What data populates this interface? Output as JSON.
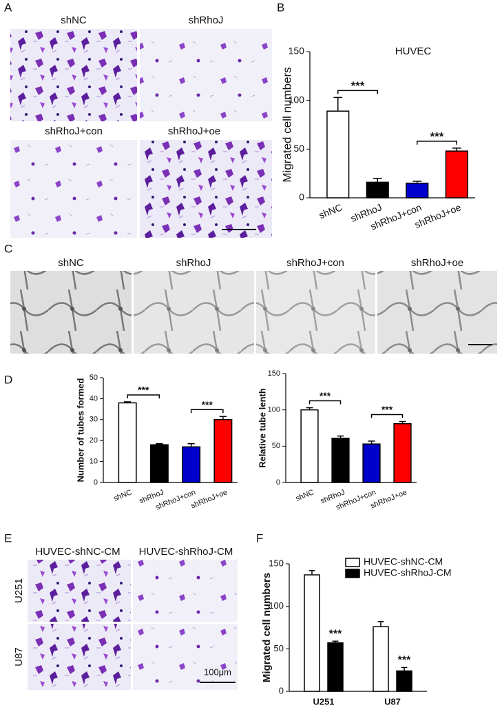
{
  "panel_labels": [
    "A",
    "B",
    "C",
    "D",
    "E",
    "F"
  ],
  "panel_A_images": [
    "shNC",
    "shRhoJ",
    "shRhoJ+con",
    "shRhoJ+oe"
  ],
  "panel_C_images": [
    "shNC",
    "shRhoJ",
    "shRhoJ+con",
    "shRhoJ+oe"
  ],
  "panel_E_columns": [
    "HUVEC-shNC-CM",
    "HUVEC-shRhoJ-CM"
  ],
  "panel_E_rows": [
    "U251",
    "U87"
  ],
  "panel_E_scale": "100μm",
  "chart_data": [
    {
      "type": "bar",
      "annotation": "HUVEC",
      "ylabel": "Migrated cell numbers",
      "categories": [
        "shNC",
        "shRhoJ",
        "shRhoJ+con",
        "shRhoJ+oe"
      ],
      "values": [
        89,
        16,
        15,
        48
      ],
      "errors": [
        14,
        4,
        2,
        3
      ],
      "colors": [
        "#ffffff",
        "#000000",
        "#0000cc",
        "#ff0000"
      ],
      "ylim": [
        0,
        150
      ],
      "yticks": [
        0,
        50,
        100,
        150
      ],
      "significance": [
        {
          "between": [
            0,
            1
          ],
          "label": "***"
        },
        {
          "between": [
            2,
            3
          ],
          "label": "***"
        }
      ]
    },
    {
      "type": "bar",
      "ylabel": "Number of tubes formed",
      "categories": [
        "shNC",
        "shRhoJ",
        "shRhoJ+con",
        "shRhoJ+oe"
      ],
      "values": [
        38,
        18,
        17,
        30
      ],
      "errors": [
        0.5,
        0.5,
        1.5,
        1.5
      ],
      "colors": [
        "#ffffff",
        "#000000",
        "#0000cc",
        "#ff0000"
      ],
      "ylim": [
        0,
        50
      ],
      "yticks": [
        0,
        10,
        20,
        30,
        40,
        50
      ],
      "significance": [
        {
          "between": [
            0,
            1
          ],
          "label": "***"
        },
        {
          "between": [
            2,
            3
          ],
          "label": "***"
        }
      ]
    },
    {
      "type": "bar",
      "ylabel": "Relative tube lenth",
      "categories": [
        "shNC",
        "shRhoJ",
        "shRhoJ+con",
        "shRhoJ+oe"
      ],
      "values": [
        100,
        61,
        53,
        81
      ],
      "errors": [
        3,
        3,
        4,
        3
      ],
      "colors": [
        "#ffffff",
        "#000000",
        "#0000cc",
        "#ff0000"
      ],
      "ylim": [
        0,
        150
      ],
      "yticks": [
        0,
        50,
        100,
        150
      ],
      "significance": [
        {
          "between": [
            0,
            1
          ],
          "label": "***"
        },
        {
          "between": [
            2,
            3
          ],
          "label": "***"
        }
      ]
    },
    {
      "type": "grouped_bar",
      "ylabel": "Migrated cell numbers",
      "categories": [
        "U251",
        "U87"
      ],
      "series": [
        {
          "name": "HUVEC-shNC-CM",
          "color": "#ffffff",
          "values": [
            137,
            76
          ],
          "errors": [
            5,
            6
          ]
        },
        {
          "name": "HUVEC-shRhoJ-CM",
          "color": "#000000",
          "values": [
            57,
            24
          ],
          "errors": [
            2,
            4
          ],
          "annotations": [
            "***",
            "***"
          ]
        }
      ],
      "ylim": [
        0,
        150
      ],
      "yticks": [
        0,
        50,
        100,
        150
      ],
      "legend": "top-right"
    }
  ]
}
